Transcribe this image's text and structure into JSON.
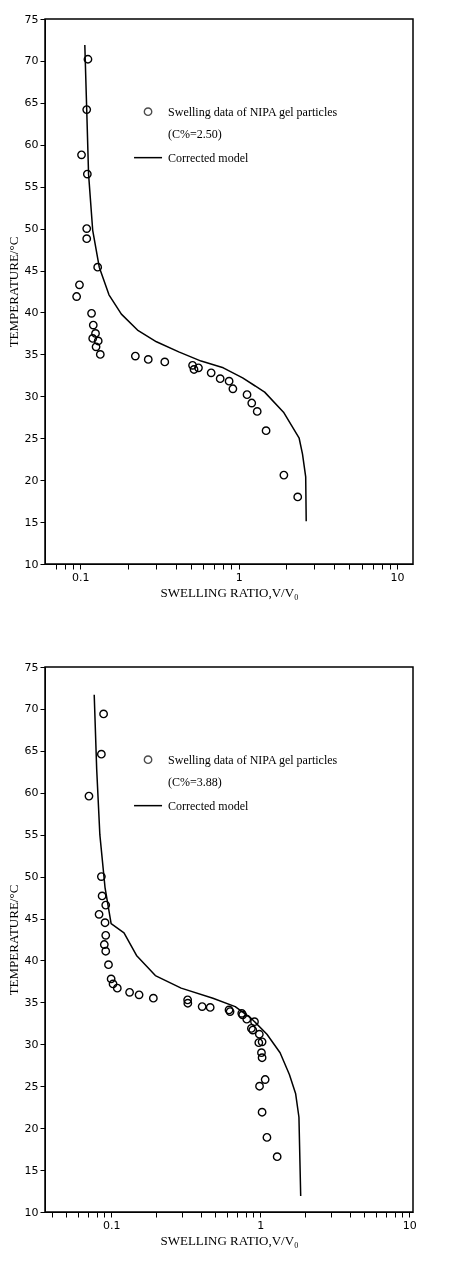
{
  "chart_data": [
    {
      "type": "scatter",
      "xlabel": "SWELLING RATIO,V/V₀",
      "ylabel": "TEMPERATURE/°C",
      "log": "x",
      "grid": false,
      "legend": "top right",
      "xlim": [
        0.06,
        12.6
      ],
      "ylim": [
        10,
        75
      ],
      "xticks": [
        {
          "value": 0.07,
          "label": null
        },
        {
          "value": 0.08,
          "label": null
        },
        {
          "value": 0.09,
          "label": null
        },
        0.1,
        {
          "value": 0.2,
          "label": null
        },
        {
          "value": 0.3,
          "label": null
        },
        {
          "value": 0.4,
          "label": null
        },
        {
          "value": 0.5,
          "label": null
        },
        {
          "value": 0.6,
          "label": null
        },
        {
          "value": 0.7,
          "label": null
        },
        {
          "value": 0.8,
          "label": null
        },
        {
          "value": 0.9,
          "label": null
        },
        1,
        {
          "value": 2,
          "label": null
        },
        {
          "value": 3,
          "label": null
        },
        {
          "value": 4,
          "label": null
        },
        {
          "value": 5,
          "label": null
        },
        {
          "value": 6,
          "label": null
        },
        {
          "value": 7,
          "label": null
        },
        {
          "value": 8,
          "label": null
        },
        {
          "value": 9,
          "label": null
        },
        10
      ],
      "yticks": [
        10,
        15,
        20,
        25,
        30,
        35,
        40,
        45,
        50,
        55,
        60,
        65,
        70,
        75
      ],
      "series": [
        {
          "name": "Swelling data of NIPA gel particles\n(C%=2.50)",
          "type": "scatter",
          "marker": "circle",
          "color": "#000000",
          "x": [
            0.112,
            0.11,
            0.102,
            0.111,
            0.11,
            0.11,
            0.129,
            0.099,
            0.095,
            0.118,
            0.121,
            0.125,
            0.12,
            0.13,
            0.126,
            0.134,
            0.223,
            0.269,
            0.342,
            0.512,
            0.523,
            0.558,
            0.671,
            0.765,
            0.871,
            0.92,
            1.13,
            1.21,
            1.31,
            1.49,
            1.93,
            2.36
          ],
          "values": [
            70.2,
            64.2,
            58.8,
            56.5,
            50.0,
            48.8,
            45.4,
            43.3,
            41.9,
            39.9,
            38.5,
            37.5,
            36.9,
            36.6,
            35.9,
            35.0,
            34.8,
            34.4,
            34.1,
            33.7,
            33.2,
            33.4,
            32.8,
            32.1,
            31.8,
            30.9,
            30.2,
            29.2,
            28.2,
            25.9,
            20.6,
            18.0
          ]
        },
        {
          "name": "Corrected model",
          "type": "line",
          "line_style": "solid",
          "color": "#000000",
          "x": [
            0.107,
            0.11,
            0.113,
            0.12,
            0.132,
            0.152,
            0.182,
            0.23,
            0.303,
            0.419,
            0.58,
            0.8,
            1.06,
            1.46,
            1.92,
            2.41,
            2.53,
            2.65,
            2.67
          ],
          "values": [
            71.9,
            64.2,
            56.5,
            49.8,
            45.4,
            42.1,
            39.8,
            37.9,
            36.5,
            35.3,
            34.2,
            33.4,
            32.2,
            30.5,
            28.1,
            25.0,
            23.1,
            20.4,
            15.1
          ]
        }
      ]
    },
    {
      "type": "scatter",
      "xlabel": "SWELLING RATIO,V/V₀",
      "ylabel": "TEMPERATURE/°C",
      "log": "x",
      "grid": false,
      "legend": "top right",
      "xlim": [
        0.036,
        10.6
      ],
      "ylim": [
        10,
        75
      ],
      "xticks": [
        {
          "value": 0.04,
          "label": null
        },
        {
          "value": 0.05,
          "label": null
        },
        {
          "value": 0.06,
          "label": null
        },
        {
          "value": 0.07,
          "label": null
        },
        {
          "value": 0.08,
          "label": null
        },
        {
          "value": 0.09,
          "label": null
        },
        0.1,
        {
          "value": 0.2,
          "label": null
        },
        {
          "value": 0.3,
          "label": null
        },
        {
          "value": 0.4,
          "label": null
        },
        {
          "value": 0.5,
          "label": null
        },
        {
          "value": 0.6,
          "label": null
        },
        {
          "value": 0.7,
          "label": null
        },
        {
          "value": 0.8,
          "label": null
        },
        {
          "value": 0.9,
          "label": null
        },
        1,
        {
          "value": 2,
          "label": null
        },
        {
          "value": 3,
          "label": null
        },
        {
          "value": 4,
          "label": null
        },
        {
          "value": 5,
          "label": null
        },
        {
          "value": 6,
          "label": null
        },
        {
          "value": 7,
          "label": null
        },
        {
          "value": 8,
          "label": null
        },
        {
          "value": 9,
          "label": null
        },
        10
      ],
      "yticks": [
        10,
        15,
        20,
        25,
        30,
        35,
        40,
        45,
        50,
        55,
        60,
        65,
        70,
        75
      ],
      "series": [
        {
          "name": "Swelling data of NIPA gel particles\n(C%=3.88)",
          "type": "scatter",
          "marker": "circle",
          "color": "#000000",
          "x": [
            0.089,
            0.086,
            0.071,
            0.086,
            0.087,
            0.092,
            0.083,
            0.091,
            0.092,
            0.09,
            0.092,
            0.096,
            0.1,
            0.103,
            0.11,
            0.133,
            0.154,
            0.192,
            0.326,
            0.327,
            0.408,
            0.462,
            0.618,
            0.628,
            0.752,
            0.763,
            0.813,
            0.916,
            0.873,
            0.892,
            0.987,
            0.979,
            1.03,
            1.02,
            1.03,
            1.08,
            0.99,
            1.03,
            1.11,
            1.3
          ],
          "values": [
            69.4,
            64.6,
            59.6,
            50.0,
            47.7,
            46.6,
            45.5,
            44.5,
            43.0,
            41.9,
            41.1,
            39.5,
            37.8,
            37.2,
            36.7,
            36.2,
            35.9,
            35.5,
            35.3,
            34.9,
            34.5,
            34.4,
            34.1,
            33.9,
            33.7,
            33.5,
            33.0,
            32.7,
            31.9,
            31.7,
            31.2,
            30.2,
            30.3,
            29.0,
            28.4,
            25.8,
            25.0,
            21.9,
            18.9,
            16.6
          ]
        },
        {
          "name": "Corrected model",
          "type": "line",
          "line_style": "solid",
          "color": "#000000",
          "x": [
            0.077,
            0.08,
            0.084,
            0.091,
            0.1,
            0.122,
            0.148,
            0.198,
            0.295,
            0.482,
            0.68,
            0.87,
            1.11,
            1.36,
            1.57,
            1.73,
            1.82,
            1.87
          ],
          "values": [
            71.7,
            62.8,
            55.0,
            48.7,
            44.4,
            43.3,
            40.6,
            38.2,
            36.7,
            35.5,
            34.5,
            33.1,
            31.2,
            29.0,
            26.4,
            24.1,
            21.3,
            11.9
          ]
        }
      ]
    }
  ]
}
